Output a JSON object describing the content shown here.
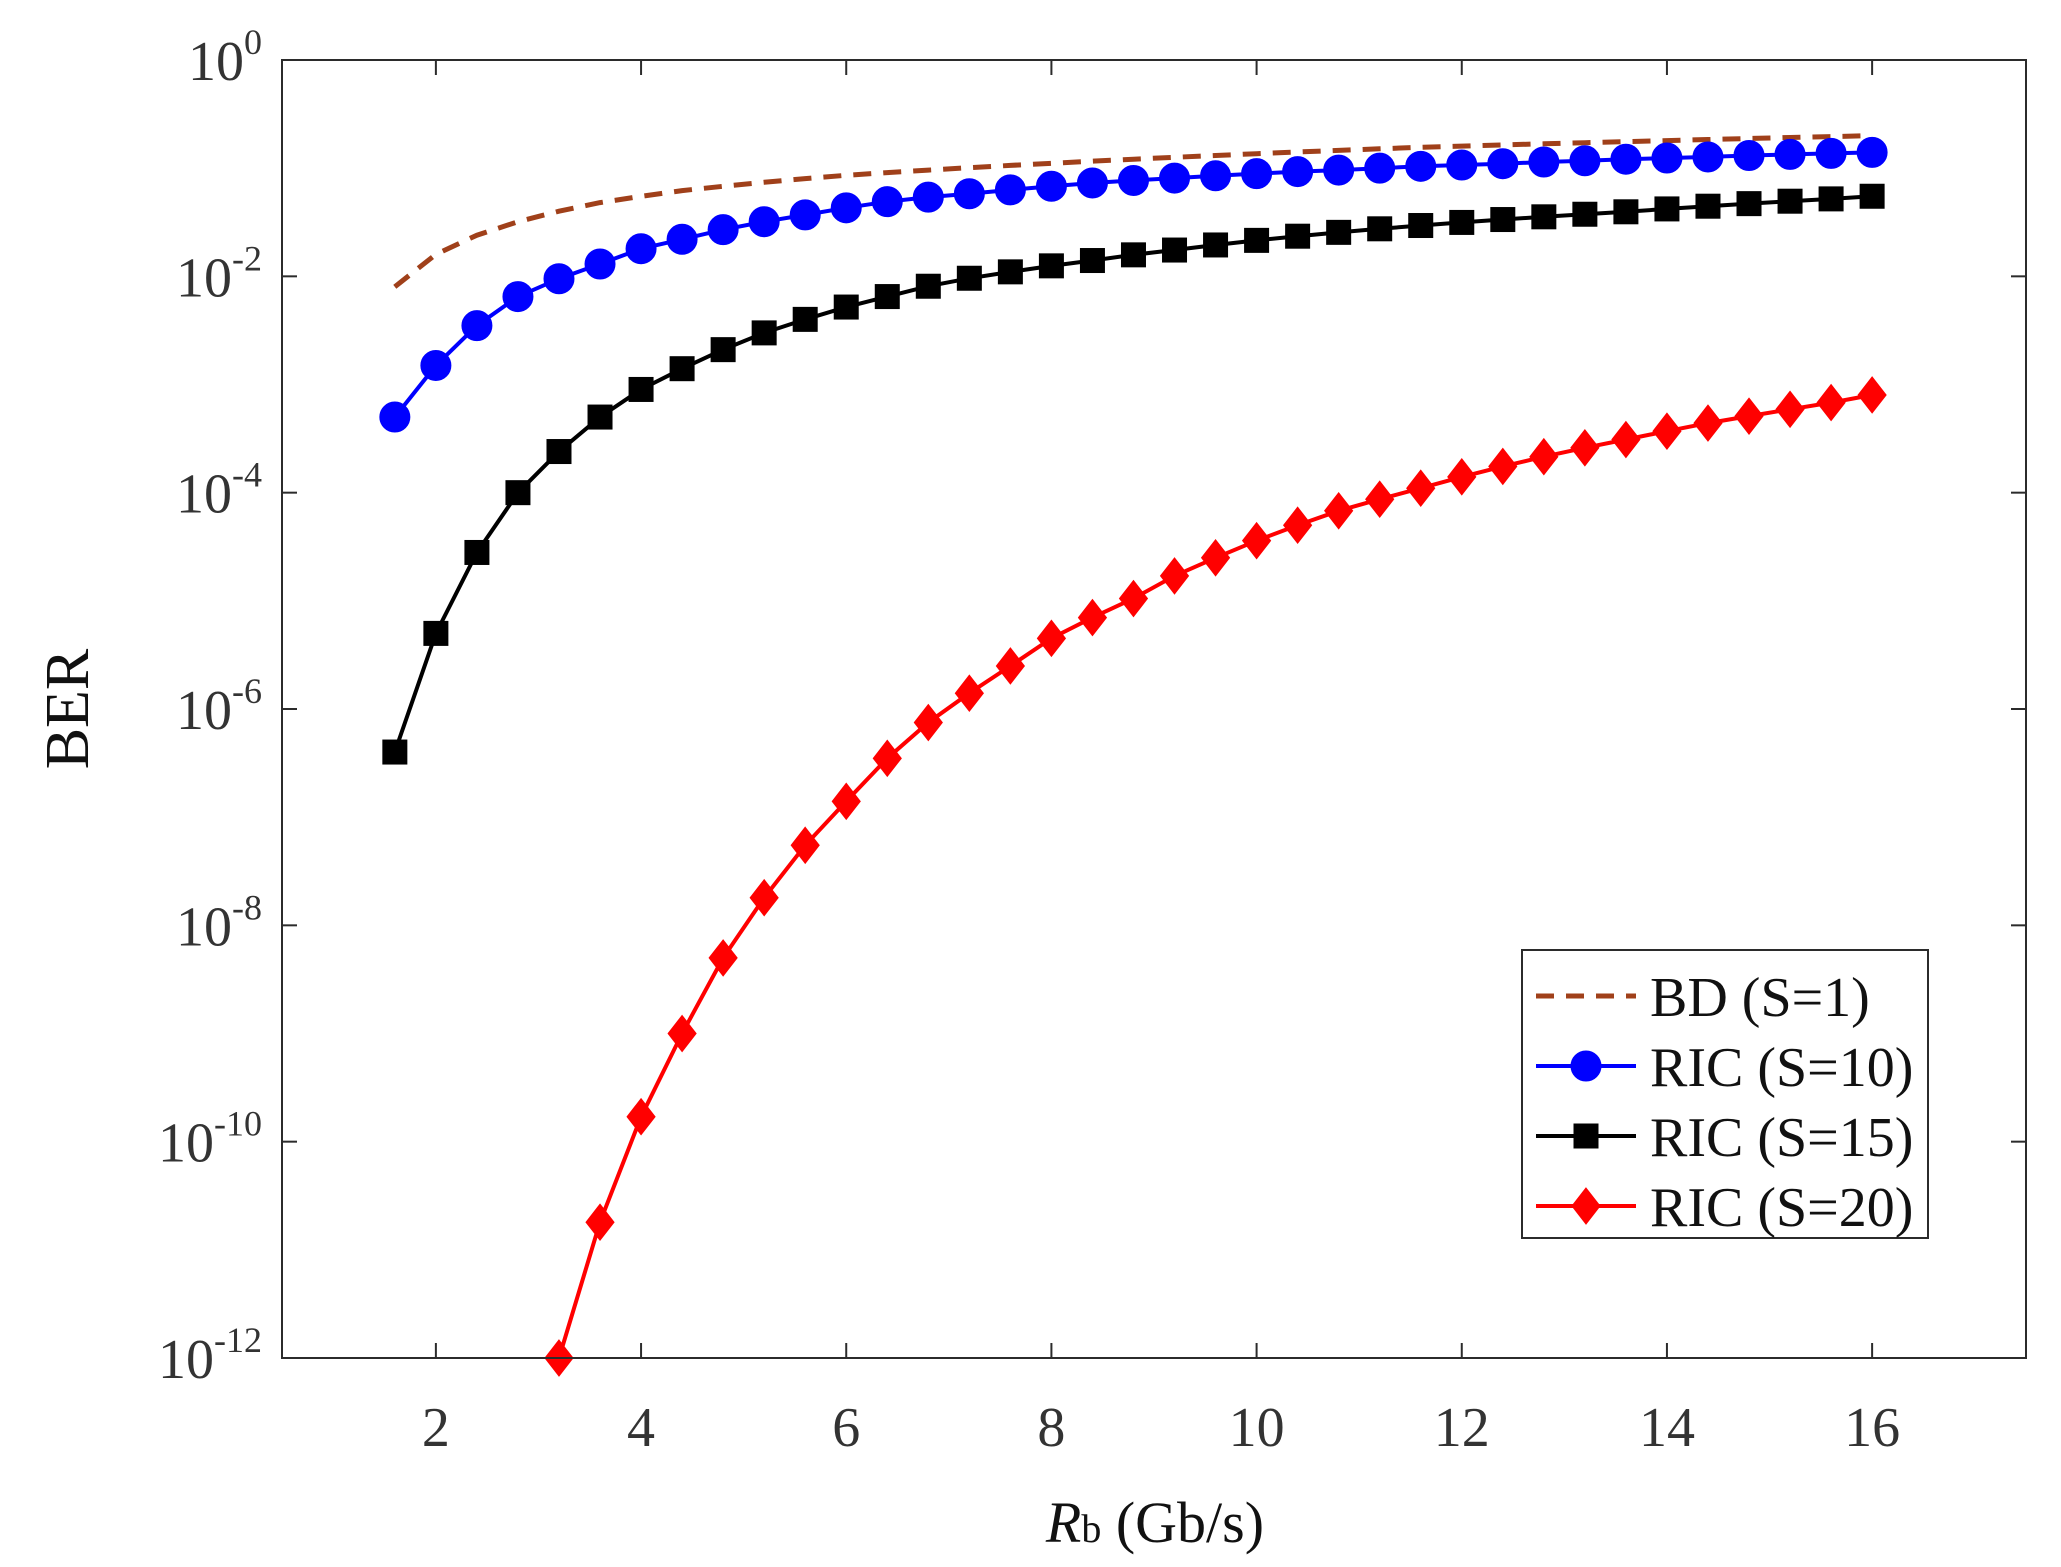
{
  "chart_data": {
    "type": "line",
    "title": "",
    "xlabel": {
      "main": "R",
      "sub": "b",
      "unit": " (Gb/s)"
    },
    "ylabel": "BER",
    "xlim": [
      0.5,
      17.5
    ],
    "ylim": [
      1e-12,
      1
    ],
    "yscale": "log",
    "grid": false,
    "legend_position": "bottom-right",
    "x_ticks": [
      2,
      4,
      6,
      8,
      10,
      12,
      14,
      16
    ],
    "x_tick_labels": [
      "2",
      "4",
      "6",
      "8",
      "10",
      "12",
      "14",
      "16"
    ],
    "y_ticks": [
      {
        "value": 1e-12,
        "base": "10",
        "exp": "-12"
      },
      {
        "value": 1e-10,
        "base": "10",
        "exp": "-10"
      },
      {
        "value": 1e-08,
        "base": "10",
        "exp": "-8"
      },
      {
        "value": 1e-06,
        "base": "10",
        "exp": "-6"
      },
      {
        "value": 0.0001,
        "base": "10",
        "exp": "-4"
      },
      {
        "value": 0.01,
        "base": "10",
        "exp": "-2"
      },
      {
        "value": 1,
        "base": "10",
        "exp": "0"
      }
    ],
    "series": [
      {
        "name": "BD (S=1)",
        "color": "#a0401a",
        "marker": "none",
        "style": "dashed",
        "x": [
          1.6,
          2.0,
          2.4,
          2.8,
          3.2,
          3.6,
          4.0,
          4.4,
          4.8,
          5.2,
          5.6,
          6.0,
          6.4,
          6.8,
          7.2,
          7.6,
          8.0,
          8.4,
          8.8,
          9.2,
          9.6,
          10.0,
          10.4,
          10.8,
          11.2,
          11.6,
          12.0,
          12.4,
          12.8,
          13.2,
          13.6,
          14.0,
          14.4,
          14.8,
          15.2,
          15.6,
          16.0
        ],
        "y": [
          0.008,
          0.016,
          0.024,
          0.032,
          0.04,
          0.048,
          0.055,
          0.062,
          0.068,
          0.074,
          0.08,
          0.086,
          0.091,
          0.096,
          0.101,
          0.106,
          0.111,
          0.116,
          0.121,
          0.126,
          0.131,
          0.136,
          0.141,
          0.146,
          0.151,
          0.156,
          0.16,
          0.164,
          0.168,
          0.172,
          0.176,
          0.18,
          0.184,
          0.188,
          0.192,
          0.196,
          0.2
        ]
      },
      {
        "name": "RIC (S=10)",
        "color": "#0000ff",
        "marker": "circle",
        "style": "solid",
        "x": [
          1.6,
          2.0,
          2.4,
          2.8,
          3.2,
          3.6,
          4.0,
          4.4,
          4.8,
          5.2,
          5.6,
          6.0,
          6.4,
          6.8,
          7.2,
          7.6,
          8.0,
          8.4,
          8.8,
          9.2,
          9.6,
          10.0,
          10.4,
          10.8,
          11.2,
          11.6,
          12.0,
          12.4,
          12.8,
          13.2,
          13.6,
          14.0,
          14.4,
          14.8,
          15.2,
          15.6,
          16.0
        ],
        "y": [
          0.0005,
          0.0015,
          0.0035,
          0.0065,
          0.0095,
          0.013,
          0.018,
          0.022,
          0.027,
          0.032,
          0.037,
          0.043,
          0.049,
          0.054,
          0.058,
          0.063,
          0.068,
          0.073,
          0.077,
          0.081,
          0.085,
          0.089,
          0.093,
          0.096,
          0.1,
          0.104,
          0.107,
          0.11,
          0.114,
          0.117,
          0.121,
          0.124,
          0.127,
          0.131,
          0.134,
          0.137,
          0.14
        ]
      },
      {
        "name": "RIC (S=15)",
        "color": "#000000",
        "marker": "square",
        "style": "solid",
        "x": [
          1.6,
          2.0,
          2.4,
          2.8,
          3.2,
          3.6,
          4.0,
          4.4,
          4.8,
          5.2,
          5.6,
          6.0,
          6.4,
          6.8,
          7.2,
          7.6,
          8.0,
          8.4,
          8.8,
          9.2,
          9.6,
          10.0,
          10.4,
          10.8,
          11.2,
          11.6,
          12.0,
          12.4,
          12.8,
          13.2,
          13.6,
          14.0,
          14.4,
          14.8,
          15.2,
          15.6,
          16.0
        ],
        "y": [
          4e-07,
          5e-06,
          2.8e-05,
          0.0001,
          0.00024,
          0.0005,
          0.0009,
          0.0014,
          0.0021,
          0.003,
          0.004,
          0.0052,
          0.0065,
          0.0081,
          0.0096,
          0.011,
          0.0125,
          0.014,
          0.0158,
          0.0175,
          0.0195,
          0.0215,
          0.0235,
          0.0255,
          0.0275,
          0.0295,
          0.0315,
          0.0335,
          0.0355,
          0.0375,
          0.0395,
          0.042,
          0.0445,
          0.047,
          0.0495,
          0.052,
          0.055
        ]
      },
      {
        "name": "RIC (S=20)",
        "color": "#ff0000",
        "marker": "diamond",
        "style": "solid",
        "x": [
          3.2,
          3.6,
          4.0,
          4.4,
          4.8,
          5.2,
          5.6,
          6.0,
          6.4,
          6.8,
          7.2,
          7.6,
          8.0,
          8.4,
          8.8,
          9.2,
          9.6,
          10.0,
          10.4,
          10.8,
          11.2,
          11.6,
          12.0,
          12.4,
          12.8,
          13.2,
          13.6,
          14.0,
          14.4,
          14.8,
          15.2,
          15.6,
          16.0
        ],
        "y": [
          1e-12,
          1.8e-11,
          1.7e-10,
          1e-09,
          5e-09,
          1.8e-08,
          5.5e-08,
          1.4e-07,
          3.5e-07,
          7.5e-07,
          1.4e-06,
          2.5e-06,
          4.5e-06,
          7e-06,
          1.05e-05,
          1.7e-05,
          2.5e-05,
          3.6e-05,
          5e-05,
          6.8e-05,
          8.7e-05,
          0.00011,
          0.00014,
          0.000175,
          0.000215,
          0.00026,
          0.00031,
          0.00037,
          0.00044,
          0.00051,
          0.00059,
          0.00068,
          0.0008
        ]
      }
    ]
  }
}
